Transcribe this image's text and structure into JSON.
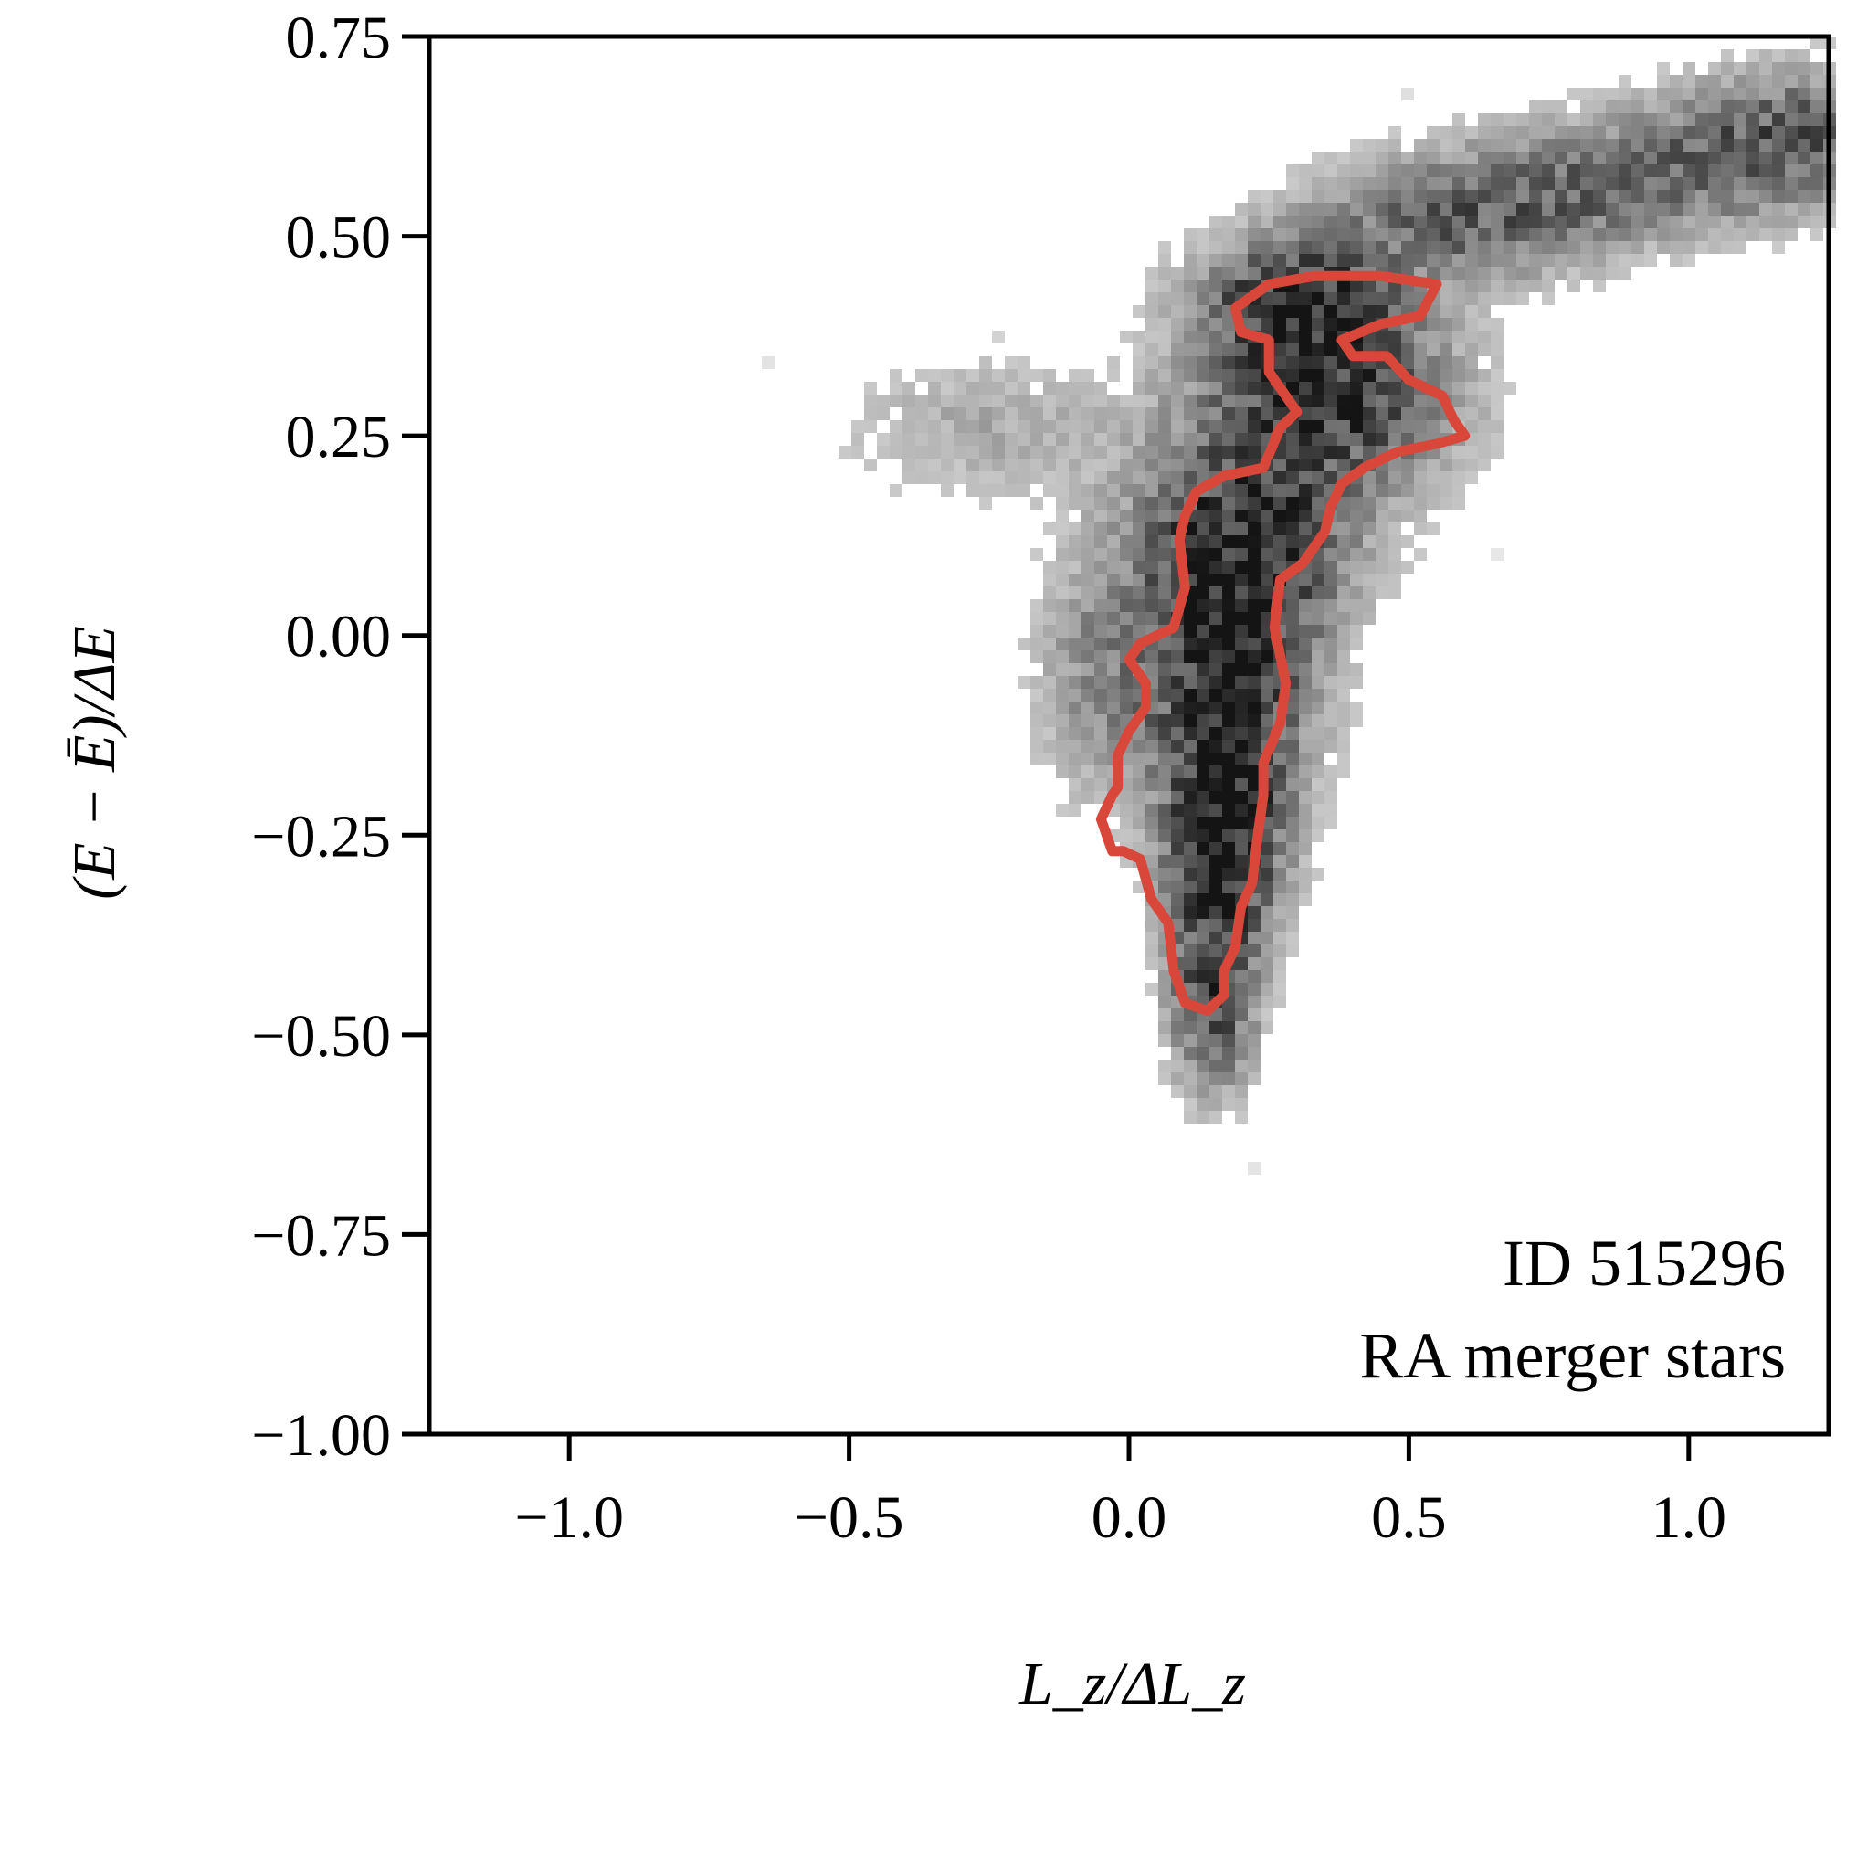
{
  "chart_data": {
    "type": "heatmap",
    "title": "",
    "xlabel": "L_z/ΔL_z",
    "ylabel": "(E − Ē)/ΔE",
    "xlim": [
      -1.25,
      1.25
    ],
    "ylim": [
      -1.0,
      0.75
    ],
    "x_ticks": [
      -1.0,
      -0.5,
      0.0,
      0.5,
      1.0
    ],
    "x_tick_labels": [
      "−1.0",
      "−0.5",
      "0.0",
      "0.5",
      "1.0"
    ],
    "y_ticks": [
      0.75,
      0.5,
      0.25,
      0.0,
      -0.25,
      -0.5,
      -0.75,
      -1.0
    ],
    "y_tick_labels": [
      "0.75",
      "0.50",
      "0.25",
      "0.00",
      "−0.25",
      "−0.50",
      "−0.75",
      "−1.00"
    ],
    "annotations": [
      "ID 515296",
      "RA merger stars"
    ],
    "grid": false,
    "colormap": "Greys",
    "contour_color": "#d9473b",
    "density_ridge": [
      {
        "x": 0.15,
        "y": -0.45,
        "sx": 0.05,
        "sy": 0.08,
        "w": 0.7
      },
      {
        "x": 0.17,
        "y": -0.25,
        "sx": 0.07,
        "sy": 0.09,
        "w": 1.0
      },
      {
        "x": 0.18,
        "y": -0.05,
        "sx": 0.1,
        "sy": 0.1,
        "w": 0.8
      },
      {
        "x": 0.2,
        "y": 0.12,
        "sx": 0.13,
        "sy": 0.08,
        "w": 0.75
      },
      {
        "x": 0.35,
        "y": 0.3,
        "sx": 0.15,
        "sy": 0.08,
        "w": 0.8
      },
      {
        "x": 0.3,
        "y": 0.42,
        "sx": 0.12,
        "sy": 0.05,
        "w": 0.7
      },
      {
        "x": 0.6,
        "y": 0.52,
        "sx": 0.18,
        "sy": 0.05,
        "w": 0.5
      },
      {
        "x": 0.95,
        "y": 0.58,
        "sx": 0.22,
        "sy": 0.05,
        "w": 0.45
      },
      {
        "x": 1.2,
        "y": 0.64,
        "sx": 0.15,
        "sy": 0.05,
        "w": 0.45
      },
      {
        "x": -0.25,
        "y": 0.26,
        "sx": 0.18,
        "sy": 0.06,
        "w": 0.18
      },
      {
        "x": -0.05,
        "y": -0.05,
        "sx": 0.08,
        "sy": 0.1,
        "w": 0.3
      }
    ],
    "contour": [
      [
        0.19,
        0.41
      ],
      [
        0.25,
        0.44
      ],
      [
        0.33,
        0.45
      ],
      [
        0.45,
        0.45
      ],
      [
        0.55,
        0.44
      ],
      [
        0.52,
        0.4
      ],
      [
        0.45,
        0.39
      ],
      [
        0.38,
        0.37
      ],
      [
        0.4,
        0.35
      ],
      [
        0.46,
        0.35
      ],
      [
        0.5,
        0.32
      ],
      [
        0.56,
        0.3
      ],
      [
        0.58,
        0.27
      ],
      [
        0.6,
        0.25
      ],
      [
        0.55,
        0.24
      ],
      [
        0.48,
        0.23
      ],
      [
        0.42,
        0.21
      ],
      [
        0.38,
        0.19
      ],
      [
        0.36,
        0.16
      ],
      [
        0.35,
        0.13
      ],
      [
        0.34,
        0.12
      ],
      [
        0.31,
        0.09
      ],
      [
        0.27,
        0.07
      ],
      [
        0.26,
        0.01
      ],
      [
        0.28,
        -0.06
      ],
      [
        0.27,
        -0.11
      ],
      [
        0.24,
        -0.16
      ],
      [
        0.24,
        -0.2
      ],
      [
        0.23,
        -0.25
      ],
      [
        0.22,
        -0.31
      ],
      [
        0.2,
        -0.34
      ],
      [
        0.19,
        -0.39
      ],
      [
        0.17,
        -0.42
      ],
      [
        0.17,
        -0.45
      ],
      [
        0.14,
        -0.47
      ],
      [
        0.1,
        -0.46
      ],
      [
        0.08,
        -0.42
      ],
      [
        0.07,
        -0.36
      ],
      [
        0.04,
        -0.33
      ],
      [
        0.02,
        -0.28
      ],
      [
        -0.01,
        -0.27
      ],
      [
        -0.03,
        -0.27
      ],
      [
        -0.05,
        -0.23
      ],
      [
        -0.03,
        -0.2
      ],
      [
        -0.02,
        -0.19
      ],
      [
        -0.02,
        -0.15
      ],
      [
        0.0,
        -0.12
      ],
      [
        0.03,
        -0.09
      ],
      [
        0.03,
        -0.06
      ],
      [
        0.0,
        -0.03
      ],
      [
        0.02,
        -0.01
      ],
      [
        0.08,
        0.01
      ],
      [
        0.1,
        0.06
      ],
      [
        0.09,
        0.12
      ],
      [
        0.1,
        0.15
      ],
      [
        0.12,
        0.18
      ],
      [
        0.17,
        0.2
      ],
      [
        0.24,
        0.21
      ],
      [
        0.27,
        0.26
      ],
      [
        0.3,
        0.28
      ],
      [
        0.25,
        0.33
      ],
      [
        0.25,
        0.37
      ],
      [
        0.2,
        0.38
      ]
    ]
  }
}
